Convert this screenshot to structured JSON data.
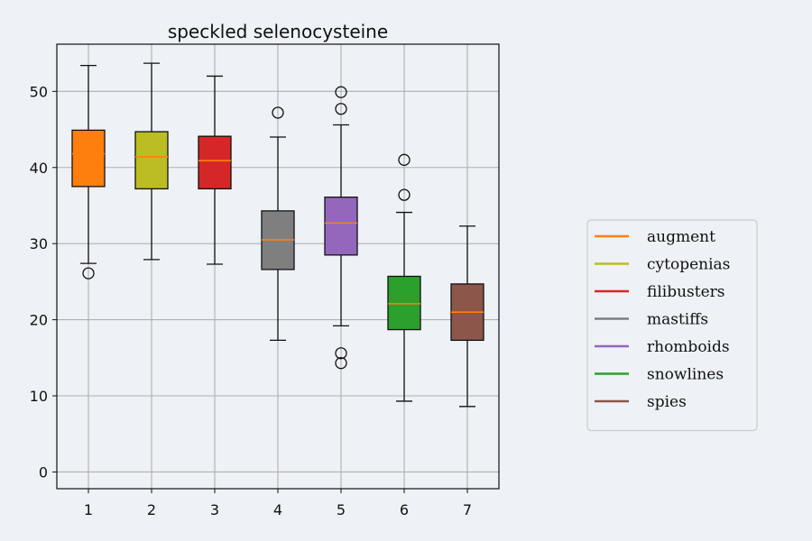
{
  "chart_data": {
    "type": "box",
    "title": "speckled selenocysteine",
    "xlabel": "",
    "ylabel": "",
    "categories": [
      "1",
      "2",
      "3",
      "4",
      "5",
      "6",
      "7"
    ],
    "ylim": [
      -2.2,
      56.2
    ],
    "yticks": [
      0,
      10,
      20,
      30,
      40,
      50
    ],
    "grid": true,
    "legend_position": "right",
    "median_color": "#ff7f0e",
    "series": [
      {
        "name": "augment",
        "color": "#ff7f0e",
        "q1": 37.5,
        "median": 41.8,
        "q3": 44.9,
        "whisker_low": 27.4,
        "whisker_high": 53.4,
        "outliers": [
          26.1
        ]
      },
      {
        "name": "cytopenias",
        "color": "#bcbd22",
        "q1": 37.2,
        "median": 41.4,
        "q3": 44.7,
        "whisker_low": 27.9,
        "whisker_high": 53.7,
        "outliers": []
      },
      {
        "name": "filibusters",
        "color": "#d62728",
        "q1": 37.2,
        "median": 40.9,
        "q3": 44.1,
        "whisker_low": 27.3,
        "whisker_high": 52.0,
        "outliers": []
      },
      {
        "name": "mastiffs",
        "color": "#7f7f7f",
        "q1": 26.6,
        "median": 30.5,
        "q3": 34.3,
        "whisker_low": 17.3,
        "whisker_high": 44.0,
        "outliers": [
          47.2
        ]
      },
      {
        "name": "rhomboids",
        "color": "#9467bd",
        "q1": 28.5,
        "median": 32.7,
        "q3": 36.1,
        "whisker_low": 19.2,
        "whisker_high": 45.6,
        "outliers": [
          49.9,
          47.7,
          15.6,
          14.3
        ]
      },
      {
        "name": "snowlines",
        "color": "#2ca02c",
        "q1": 18.7,
        "median": 22.1,
        "q3": 25.7,
        "whisker_low": 9.3,
        "whisker_high": 34.1,
        "outliers": [
          41.0,
          36.4
        ]
      },
      {
        "name": "spies",
        "color": "#8c564b",
        "q1": 17.3,
        "median": 21.0,
        "q3": 24.7,
        "whisker_low": 8.6,
        "whisker_high": 32.3,
        "outliers": []
      }
    ]
  }
}
